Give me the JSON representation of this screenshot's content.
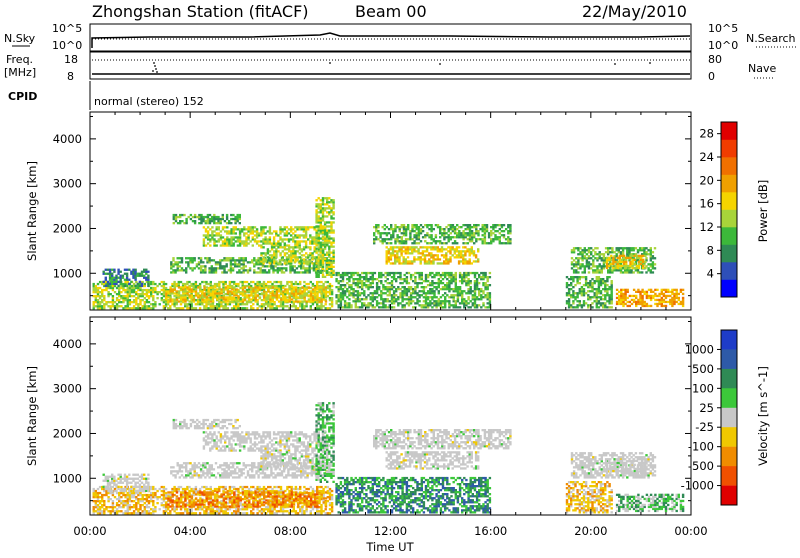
{
  "header": {
    "station": "Zhongshan Station (fitACF)",
    "beam": "Beam 00",
    "date": "22/May/2010"
  },
  "status_panels": {
    "nsky_label": "N.Sky",
    "nsky_ticks": [
      "10^5",
      "10^0"
    ],
    "nsearch_label": "N.Search",
    "nsearch_ticks": [
      "10^5",
      "10^0"
    ],
    "freq_label": "Freq.",
    "freq_unit": "[MHz]",
    "freq_ticks": [
      18,
      8
    ],
    "nave_label": "Nave",
    "nave_ticks": [
      80,
      0
    ],
    "cpid_label": "CPID",
    "cpid_value": "normal (stereo) 152"
  },
  "chart_data": [
    {
      "type": "heatmap",
      "name": "power",
      "xlabel": "",
      "ylabel": "Slant Range [km]",
      "x_ticks": [
        "00:00",
        "04:00",
        "08:00",
        "12:00",
        "16:00",
        "20:00",
        "00:00"
      ],
      "y_ticks": [
        1000,
        2000,
        3000,
        4000
      ],
      "ylim": [
        180,
        4600
      ],
      "xlim_hours": [
        0,
        24
      ],
      "colorbar": {
        "label": "Power [dB]",
        "ticks": [
          4,
          8,
          12,
          16,
          20,
          24,
          28
        ],
        "colors": [
          "#0000ff",
          "#2e4fb8",
          "#2f8a55",
          "#3cb83a",
          "#a8d43a",
          "#f5d400",
          "#f0a000",
          "#f07000",
          "#f03c00",
          "#e00000"
        ],
        "range": [
          0,
          30
        ]
      },
      "clusters": [
        {
          "t0": 0.1,
          "t1": 9.7,
          "r0": 200,
          "r1": 800,
          "value": 12
        },
        {
          "t0": 0.5,
          "t1": 2.3,
          "r0": 700,
          "r1": 1100,
          "value": 8
        },
        {
          "t0": 3.0,
          "t1": 9.4,
          "r0": 350,
          "r1": 700,
          "value": 18
        },
        {
          "t0": 3.2,
          "t1": 9.6,
          "r0": 1000,
          "r1": 1350,
          "value": 9
        },
        {
          "t0": 3.3,
          "t1": 6.0,
          "r0": 2100,
          "r1": 2300,
          "value": 10
        },
        {
          "t0": 4.5,
          "t1": 9.5,
          "r0": 1600,
          "r1": 2050,
          "value": 13
        },
        {
          "t0": 6.8,
          "t1": 9.3,
          "r0": 1200,
          "r1": 1600,
          "value": 14
        },
        {
          "t0": 9.0,
          "t1": 9.7,
          "r0": 900,
          "r1": 2700,
          "value": 12
        },
        {
          "t0": 11.3,
          "t1": 16.8,
          "r0": 1650,
          "r1": 2100,
          "value": 10
        },
        {
          "t0": 11.8,
          "t1": 15.5,
          "r0": 1200,
          "r1": 1600,
          "value": 16
        },
        {
          "t0": 9.8,
          "t1": 16.0,
          "r0": 220,
          "r1": 1000,
          "value": 9
        },
        {
          "t0": 19.2,
          "t1": 22.6,
          "r0": 1000,
          "r1": 1550,
          "value": 11
        },
        {
          "t0": 20.6,
          "t1": 22.2,
          "r0": 1100,
          "r1": 1400,
          "value": 17
        },
        {
          "t0": 19.0,
          "t1": 20.8,
          "r0": 220,
          "r1": 900,
          "value": 10
        },
        {
          "t0": 21.0,
          "t1": 23.7,
          "r0": 250,
          "r1": 650,
          "value": 21
        }
      ]
    },
    {
      "type": "heatmap",
      "name": "velocity",
      "xlabel": "Time UT",
      "ylabel": "Slant Range [km]",
      "x_ticks": [
        "00:00",
        "04:00",
        "08:00",
        "12:00",
        "16:00",
        "20:00",
        "00:00"
      ],
      "y_ticks": [
        1000,
        2000,
        3000,
        4000
      ],
      "ylim": [
        180,
        4600
      ],
      "xlim_hours": [
        0,
        24
      ],
      "colorbar": {
        "label": "Velocity [m s^-1]",
        "ticks": [
          "1000",
          "500",
          "100",
          "25",
          "-25",
          "-100",
          "-500",
          "-1000"
        ],
        "colors": [
          "#1e3cc8",
          "#2e5aa8",
          "#2f8a55",
          "#3cc83a",
          "#c8c8c8",
          "#f0c800",
          "#f08c00",
          "#f05000",
          "#e00000"
        ]
      },
      "clusters": [
        {
          "t0": 0.1,
          "t1": 9.7,
          "r0": 200,
          "r1": 800,
          "category": "-100"
        },
        {
          "t0": 0.5,
          "t1": 2.3,
          "r0": 700,
          "r1": 1100,
          "category": "-25"
        },
        {
          "t0": 3.0,
          "t1": 9.4,
          "r0": 350,
          "r1": 700,
          "category": "-500"
        },
        {
          "t0": 3.2,
          "t1": 9.6,
          "r0": 1000,
          "r1": 1350,
          "category": "25"
        },
        {
          "t0": 3.3,
          "t1": 6.0,
          "r0": 2100,
          "r1": 2300,
          "category": "25"
        },
        {
          "t0": 4.5,
          "t1": 9.5,
          "r0": 1600,
          "r1": 2050,
          "category": "25"
        },
        {
          "t0": 6.8,
          "t1": 9.3,
          "r0": 1200,
          "r1": 1600,
          "category": "25"
        },
        {
          "t0": 9.0,
          "t1": 9.7,
          "r0": 900,
          "r1": 2700,
          "category": "100"
        },
        {
          "t0": 11.3,
          "t1": 16.8,
          "r0": 1650,
          "r1": 2100,
          "category": "25"
        },
        {
          "t0": 11.8,
          "t1": 15.5,
          "r0": 1200,
          "r1": 1600,
          "category": "25"
        },
        {
          "t0": 9.8,
          "t1": 16.0,
          "r0": 220,
          "r1": 1000,
          "category": "500"
        },
        {
          "t0": 19.2,
          "t1": 22.6,
          "r0": 1000,
          "r1": 1550,
          "category": "25"
        },
        {
          "t0": 20.6,
          "t1": 22.2,
          "r0": 1100,
          "r1": 1400,
          "category": "25"
        },
        {
          "t0": 19.0,
          "t1": 20.8,
          "r0": 220,
          "r1": 900,
          "category": "-100"
        },
        {
          "t0": 21.0,
          "t1": 23.7,
          "r0": 250,
          "r1": 650,
          "category": "100"
        }
      ]
    }
  ]
}
